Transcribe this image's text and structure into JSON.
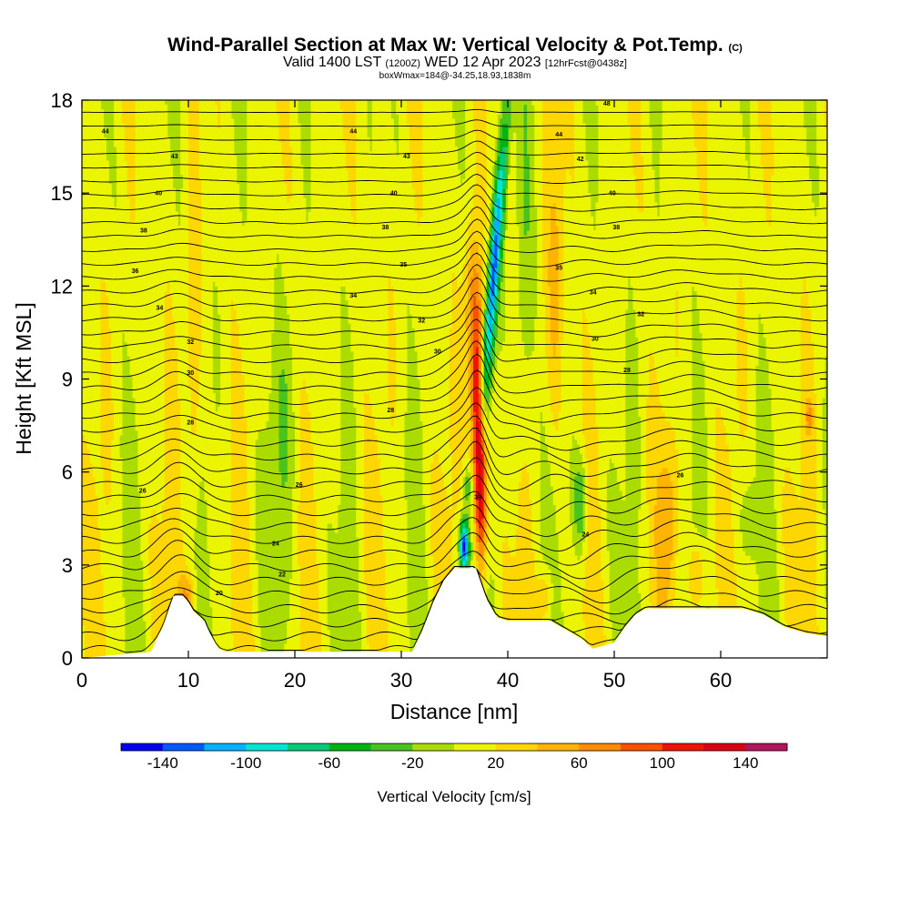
{
  "header": {
    "title": "Wind-Parallel Section at Max W: Vertical Velocity & Pot.Temp.",
    "title_mark": "(C)",
    "subtitle_a": "Valid 1400 LST",
    "subtitle_b": "(1200Z)",
    "subtitle_c": "WED 12 Apr 2023",
    "subtitle_d": "[12hrFcst@0438z]",
    "info": "boxWmax=184@-34.25,18.93,1838m"
  },
  "chart_data": {
    "type": "heatmap",
    "xlabel": "Distance [nm]",
    "ylabel": "Height [Kft MSL]",
    "xlim": [
      0,
      70
    ],
    "ylim": [
      0,
      18
    ],
    "x_ticks": [
      0,
      10,
      20,
      30,
      40,
      50,
      60
    ],
    "y_ticks": [
      0,
      3,
      6,
      9,
      12,
      15,
      18
    ],
    "colorbar": {
      "label": "Vertical Velocity [cm/s]",
      "tick_labels": [
        -140,
        -100,
        -60,
        -20,
        20,
        60,
        100,
        140
      ],
      "levels": [
        -160,
        -140,
        -120,
        -100,
        -80,
        -60,
        -40,
        -20,
        0,
        20,
        40,
        60,
        80,
        100,
        120,
        140,
        160
      ],
      "colors": [
        "#0000ee",
        "#0058ff",
        "#00b4ff",
        "#00e6d2",
        "#00cc78",
        "#00b414",
        "#4bc31e",
        "#aadc00",
        "#ebf500",
        "#ffd700",
        "#ffb400",
        "#ff8c00",
        "#ff5000",
        "#f01400",
        "#dc0014",
        "#b4145a"
      ]
    },
    "max_updraft_cm_s": 184,
    "max_updraft_location": [
      37.5,
      5.5
    ],
    "max_downdraft_location": [
      36,
      3.5
    ],
    "terrain_kft": [
      [
        0,
        0
      ],
      [
        6.5,
        0.2
      ],
      [
        7,
        0.6
      ],
      [
        7.6,
        1.0
      ],
      [
        8.1,
        1.5
      ],
      [
        8.6,
        2.0
      ],
      [
        9.5,
        2.0
      ],
      [
        10,
        1.8
      ],
      [
        10.5,
        1.5
      ],
      [
        11.5,
        1.2
      ],
      [
        12,
        0.8
      ],
      [
        12.8,
        0.3
      ],
      [
        13.5,
        0.2
      ],
      [
        31,
        0.2
      ],
      [
        32,
        0.9
      ],
      [
        33,
        1.8
      ],
      [
        34,
        2.5
      ],
      [
        35,
        2.9
      ],
      [
        37,
        2.9
      ],
      [
        38,
        1.9
      ],
      [
        39,
        1.3
      ],
      [
        40,
        1.2
      ],
      [
        44,
        1.2
      ],
      [
        47,
        0.6
      ],
      [
        48,
        0.3
      ],
      [
        49,
        0.4
      ],
      [
        50,
        0.5
      ],
      [
        51,
        1.0
      ],
      [
        52,
        1.4
      ],
      [
        53,
        1.6
      ],
      [
        62,
        1.6
      ],
      [
        64,
        1.4
      ],
      [
        66,
        1.0
      ],
      [
        68,
        0.8
      ],
      [
        70,
        0.7
      ]
    ],
    "theta_labels": [
      {
        "x": 2.2,
        "y": 17.0,
        "v": "44"
      },
      {
        "x": 25.5,
        "y": 17.0,
        "v": "44"
      },
      {
        "x": 44.8,
        "y": 16.9,
        "v": "44"
      },
      {
        "x": 49.3,
        "y": 17.9,
        "v": "48"
      },
      {
        "x": 8.7,
        "y": 16.2,
        "v": "43"
      },
      {
        "x": 30.5,
        "y": 16.2,
        "v": "43"
      },
      {
        "x": 46.8,
        "y": 16.1,
        "v": "42"
      },
      {
        "x": 7.2,
        "y": 15.0,
        "v": "40"
      },
      {
        "x": 29.3,
        "y": 15.0,
        "v": "40"
      },
      {
        "x": 49.8,
        "y": 15.0,
        "v": "40"
      },
      {
        "x": 5.8,
        "y": 13.8,
        "v": "38"
      },
      {
        "x": 28.5,
        "y": 13.9,
        "v": "38"
      },
      {
        "x": 50.2,
        "y": 13.9,
        "v": "38"
      },
      {
        "x": 5.0,
        "y": 12.5,
        "v": "36"
      },
      {
        "x": 30.2,
        "y": 12.7,
        "v": "35"
      },
      {
        "x": 44.8,
        "y": 12.6,
        "v": "35"
      },
      {
        "x": 7.3,
        "y": 11.3,
        "v": "34"
      },
      {
        "x": 25.5,
        "y": 11.7,
        "v": "34"
      },
      {
        "x": 48.0,
        "y": 11.8,
        "v": "34"
      },
      {
        "x": 10.2,
        "y": 10.2,
        "v": "32"
      },
      {
        "x": 31.9,
        "y": 10.9,
        "v": "32"
      },
      {
        "x": 52.5,
        "y": 11.1,
        "v": "32"
      },
      {
        "x": 10.2,
        "y": 9.2,
        "v": "30"
      },
      {
        "x": 33.4,
        "y": 9.9,
        "v": "30"
      },
      {
        "x": 48.2,
        "y": 10.3,
        "v": "30"
      },
      {
        "x": 10.2,
        "y": 7.6,
        "v": "28"
      },
      {
        "x": 29.0,
        "y": 8.0,
        "v": "28"
      },
      {
        "x": 51.2,
        "y": 9.3,
        "v": "28"
      },
      {
        "x": 5.7,
        "y": 5.4,
        "v": "26"
      },
      {
        "x": 20.4,
        "y": 5.6,
        "v": "26"
      },
      {
        "x": 56.2,
        "y": 5.9,
        "v": "26"
      },
      {
        "x": 18.2,
        "y": 3.7,
        "v": "24"
      },
      {
        "x": 47.3,
        "y": 4.0,
        "v": "24"
      },
      {
        "x": 37.2,
        "y": 5.2,
        "v": "30"
      },
      {
        "x": 18.8,
        "y": 2.7,
        "v": "22"
      },
      {
        "x": 12.9,
        "y": 2.1,
        "v": "20"
      }
    ]
  }
}
